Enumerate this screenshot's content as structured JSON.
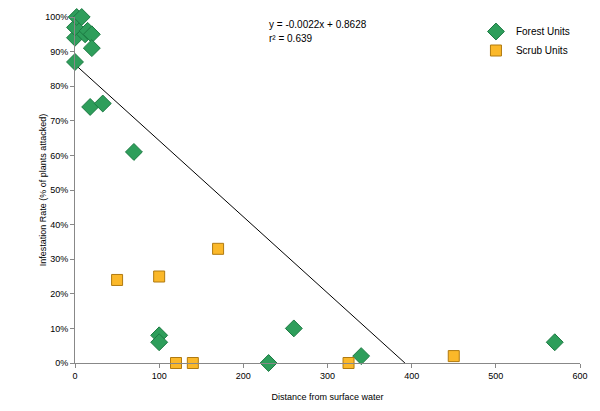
{
  "chart_data": {
    "type": "scatter",
    "x_label": "Distance from surface water",
    "y_label": "Infestation Rate (% of plants attacked)",
    "annotations": [
      "y = -0.0022x + 0.8628",
      "r² = 0.639"
    ],
    "legend": "top right",
    "grid": false,
    "xlim": [
      0,
      600
    ],
    "xticks": [
      0,
      100,
      200,
      300,
      400,
      500,
      600
    ],
    "ylim": [
      0,
      100
    ],
    "yticks": [
      {
        "value": 0,
        "label": "0%"
      },
      {
        "value": 10,
        "label": "10%"
      },
      {
        "value": 20,
        "label": "20%"
      },
      {
        "value": 30,
        "label": "30%"
      },
      {
        "value": 40,
        "label": "40%"
      },
      {
        "value": 50,
        "label": "50%"
      },
      {
        "value": 60,
        "label": "60%"
      },
      {
        "value": 70,
        "label": "70%"
      },
      {
        "value": 80,
        "label": "80%"
      },
      {
        "value": 90,
        "label": "90%"
      },
      {
        "value": 100,
        "label": "100%"
      }
    ],
    "series": [
      {
        "name": "Forest Units",
        "color": "#2e9e5b",
        "marker": "diamond",
        "x": [
          0,
          0,
          0,
          2,
          8,
          12,
          15,
          18,
          20,
          20,
          33,
          70,
          100,
          100,
          230,
          260,
          340,
          570
        ],
        "values": [
          87,
          94,
          97,
          100,
          100,
          95,
          96,
          74,
          95,
          91,
          75,
          61,
          8,
          6,
          0,
          10,
          2,
          6
        ]
      },
      {
        "name": "Scrub Units",
        "color": "#fbb829",
        "marker": "square",
        "x": [
          50,
          100,
          120,
          140,
          170,
          325,
          450
        ],
        "values": [
          24,
          25,
          0,
          0,
          33,
          0,
          2
        ]
      }
    ],
    "trend_line": {
      "color": "#000000",
      "x": [
        0,
        392
      ],
      "values": [
        86.28,
        0
      ]
    }
  }
}
